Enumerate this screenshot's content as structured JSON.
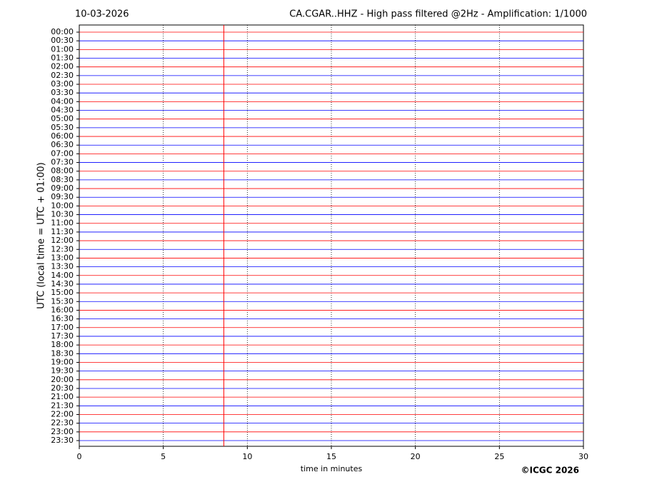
{
  "chart_data": {
    "type": "helicorder",
    "date": "10-03-2026",
    "title": "CA.CGAR..HHZ - High pass filtered @2Hz - Amplification: 1/1000",
    "ylabel": "UTC (local time = UTC + 01:00)",
    "xlabel": "time in minutes",
    "copyright": "©ICGC 2026",
    "categories": [
      "00:00",
      "00:30",
      "01:00",
      "01:30",
      "02:00",
      "02:30",
      "03:00",
      "03:30",
      "04:00",
      "04:30",
      "05:00",
      "05:30",
      "06:00",
      "06:30",
      "07:00",
      "07:30",
      "08:00",
      "08:30",
      "09:00",
      "09:30",
      "10:00",
      "10:30",
      "11:00",
      "11:30",
      "12:00",
      "12:30",
      "13:00",
      "13:30",
      "14:00",
      "14:30",
      "15:00",
      "15:30",
      "16:00",
      "16:30",
      "17:00",
      "17:30",
      "18:00",
      "18:30",
      "19:00",
      "19:30",
      "20:00",
      "20:30",
      "21:00",
      "21:30",
      "22:00",
      "22:30",
      "23:00",
      "23:30"
    ],
    "colors": [
      "#ff0000",
      "#0000ff"
    ],
    "xlim": [
      0,
      30
    ],
    "xticks": [
      0,
      5,
      10,
      15,
      20,
      25,
      30
    ],
    "grid": true,
    "event_x": 8.6,
    "event_color": "#ff0000"
  }
}
